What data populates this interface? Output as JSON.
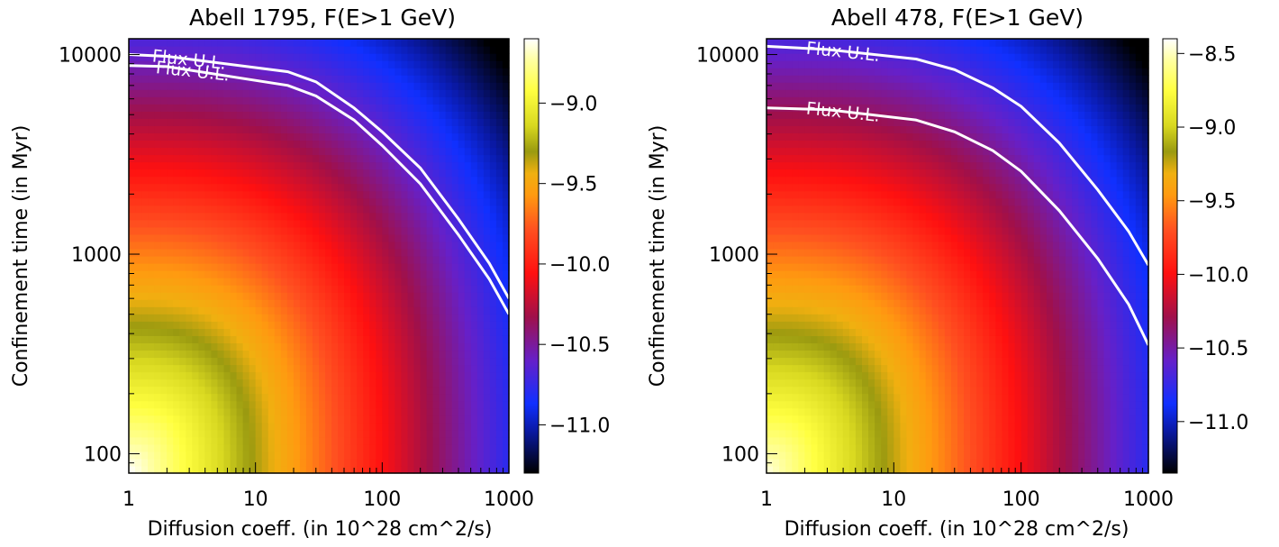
{
  "chart_data": [
    {
      "type": "heatmap",
      "title": "Abell 1795, F(E>1 GeV)",
      "xlabel": "Diffusion coeff. (in 10^28 cm^2/s)",
      "ylabel": "Confinement time (in Myr)",
      "x_scale": "log",
      "y_scale": "log",
      "xlim": [
        1,
        1000
      ],
      "ylim": [
        80,
        12000
      ],
      "x_ticks": [
        1,
        10,
        100,
        1000
      ],
      "x_tick_labels": [
        "1",
        "10",
        "100",
        "1000"
      ],
      "y_ticks": [
        100,
        1000,
        10000
      ],
      "y_tick_labels": [
        "100",
        "1000",
        "10000"
      ],
      "colorbar": {
        "ticks": [
          -9.0,
          -9.5,
          -10.0,
          -10.5,
          -11.0
        ],
        "tick_labels": [
          "−9.0",
          "−9.5",
          "−10.0",
          "−10.5",
          "−11.0"
        ],
        "range": [
          -11.3,
          -8.6
        ]
      },
      "field_anchor": {
        "value_at_x1_y80": -8.6,
        "value_at_x1000_y12000": -11.35
      },
      "contours": [
        {
          "label": "Flux U.L.",
          "label_at_x": 3,
          "points": [
            [
              1,
              10000
            ],
            [
              2,
              9800
            ],
            [
              18,
              8200
            ],
            [
              30,
              7300
            ],
            [
              60,
              5400
            ],
            [
              100,
              4100
            ],
            [
              200,
              2700
            ],
            [
              400,
              1500
            ],
            [
              700,
              900
            ],
            [
              1000,
              600
            ]
          ]
        },
        {
          "label": "Flux U.L.",
          "label_at_x": 3.2,
          "points": [
            [
              1,
              8800
            ],
            [
              2,
              8700
            ],
            [
              18,
              7000
            ],
            [
              30,
              6200
            ],
            [
              60,
              4700
            ],
            [
              100,
              3500
            ],
            [
              200,
              2250
            ],
            [
              400,
              1250
            ],
            [
              700,
              750
            ],
            [
              1000,
              500
            ]
          ]
        }
      ],
      "contour_color": "#ffffff"
    },
    {
      "type": "heatmap",
      "title": "Abell 478, F(E>1 GeV)",
      "xlabel": "Diffusion coeff. (in 10^28 cm^2/s)",
      "ylabel": "Confinement time (in Myr)",
      "x_scale": "log",
      "y_scale": "log",
      "xlim": [
        1,
        1000
      ],
      "ylim": [
        80,
        12000
      ],
      "x_ticks": [
        1,
        10,
        100,
        1000
      ],
      "x_tick_labels": [
        "1",
        "10",
        "100",
        "1000"
      ],
      "y_ticks": [
        100,
        1000,
        10000
      ],
      "y_tick_labels": [
        "100",
        "1000",
        "10000"
      ],
      "colorbar": {
        "ticks": [
          -8.5,
          -9.0,
          -9.5,
          -10.0,
          -10.5,
          -11.0
        ],
        "tick_labels": [
          "−8.5",
          "−9.0",
          "−9.5",
          "−10.0",
          "−10.5",
          "−11.0"
        ],
        "range": [
          -11.35,
          -8.4
        ]
      },
      "field_anchor": {
        "value_at_x1_y80": -8.45,
        "value_at_x1000_y12000": -11.4
      },
      "contours": [
        {
          "label": "Flux U.L.",
          "label_at_x": 4,
          "points": [
            [
              1,
              11000
            ],
            [
              3,
              10600
            ],
            [
              15,
              9500
            ],
            [
              30,
              8400
            ],
            [
              60,
              6800
            ],
            [
              100,
              5500
            ],
            [
              200,
              3600
            ],
            [
              400,
              2100
            ],
            [
              700,
              1300
            ],
            [
              1000,
              880
            ]
          ]
        },
        {
          "label": "Flux U.L.",
          "label_at_x": 4,
          "points": [
            [
              1,
              5400
            ],
            [
              3,
              5300
            ],
            [
              15,
              4700
            ],
            [
              30,
              4100
            ],
            [
              60,
              3300
            ],
            [
              100,
              2600
            ],
            [
              200,
              1650
            ],
            [
              400,
              950
            ],
            [
              700,
              560
            ],
            [
              1000,
              350
            ]
          ]
        }
      ],
      "contour_color": "#ffffff"
    }
  ]
}
